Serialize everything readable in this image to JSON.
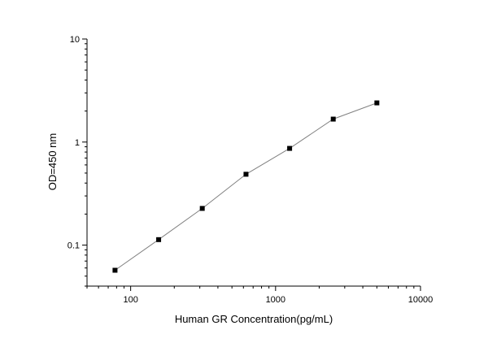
{
  "chart_data": {
    "type": "scatter",
    "title": "",
    "xlabel": "Human GR Concentration(pg/mL)",
    "ylabel": "OD=450 nm",
    "x_scale": "log",
    "y_scale": "log",
    "xlim": [
      50,
      10000
    ],
    "ylim": [
      0.04,
      10
    ],
    "x_ticks": [
      {
        "value": 100,
        "label": "100"
      },
      {
        "value": 1000,
        "label": "1000"
      },
      {
        "value": 10000,
        "label": "10000"
      }
    ],
    "y_ticks": [
      {
        "value": 0.1,
        "label": "0.1"
      },
      {
        "value": 1,
        "label": "1"
      },
      {
        "value": 10,
        "label": "10"
      }
    ],
    "grid": false,
    "legend": "none",
    "series": [
      {
        "x": [
          78,
          156,
          312,
          625,
          1250,
          2500,
          5000
        ],
        "y": [
          0.057,
          0.113,
          0.227,
          0.487,
          0.868,
          1.67,
          2.4
        ],
        "marker": "square",
        "line_color": "#808080",
        "marker_color": "#000000"
      }
    ]
  }
}
